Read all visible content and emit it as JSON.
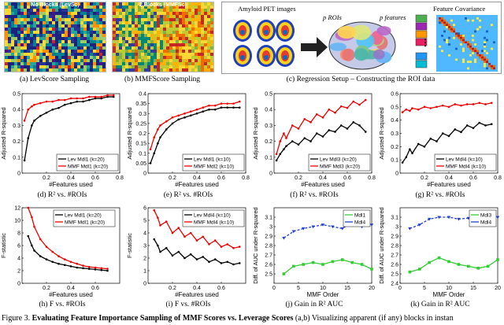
{
  "panel_a": {
    "title": "No Blocks (LevSc)",
    "caption": "(a) LevScore Sampling"
  },
  "panel_b": {
    "title": "2 Blocks (MMFSc)",
    "caption": "(b) MMFScore Sampling"
  },
  "panel_c": {
    "label_pet": "Amyloid PET images",
    "label_rois": "p ROIs",
    "label_features": "p features",
    "label_cov": "Feature Covariance",
    "dots": "⋮",
    "caption": "(c) Regression Setup – Constructing the ROI data"
  },
  "captions": {
    "d": "(d) R² vs. #ROIs",
    "e": "(e) R² vs. #ROIs",
    "f": "(f) R² vs. #ROIs",
    "g": "(g) R² vs. #ROIs",
    "h": "(h) F vs. #ROIs",
    "i": "(i) F vs. #ROIs",
    "j": "(j) Gain in R² AUC",
    "k": "(k) Gain in R² AUC"
  },
  "figure_caption": {
    "label": "Figure 3.",
    "bold": "Evaluating Feature Importance Sampling of MMF Scores vs. Leverage Scores",
    "rest": " (a,b) Visualizing apparent (if any) blocks in instan"
  },
  "chart_data": [
    {
      "id": "d",
      "type": "line",
      "xlabel": "#Features used",
      "ylabel": "Adjusted R-squared",
      "xlim": [
        0,
        0.8
      ],
      "ylim": [
        0,
        0.5
      ],
      "xticks": [
        "0.2",
        "0.4",
        "0.6",
        "0.8"
      ],
      "yticks": [
        "0",
        "0.1",
        "0.2",
        "0.3",
        "0.4",
        "0.5"
      ],
      "series": [
        {
          "name": "Lev Mdl1 (k=20)",
          "color": "#000000",
          "marker": "dot",
          "x": [
            0.02,
            0.05,
            0.08,
            0.1,
            0.15,
            0.2,
            0.25,
            0.3,
            0.35,
            0.4,
            0.45,
            0.5,
            0.55,
            0.6,
            0.65,
            0.7,
            0.75
          ],
          "y": [
            0.08,
            0.22,
            0.3,
            0.33,
            0.36,
            0.38,
            0.4,
            0.41,
            0.43,
            0.44,
            0.45,
            0.45,
            0.46,
            0.47,
            0.47,
            0.48,
            0.48
          ]
        },
        {
          "name": "MMF Mdl1 (k=20)",
          "color": "#ee0000",
          "marker": "dot",
          "x": [
            0.02,
            0.05,
            0.08,
            0.1,
            0.15,
            0.2,
            0.25,
            0.3,
            0.35,
            0.4,
            0.45,
            0.5,
            0.55,
            0.6,
            0.65,
            0.7,
            0.75
          ],
          "y": [
            0.33,
            0.4,
            0.42,
            0.43,
            0.44,
            0.45,
            0.45,
            0.46,
            0.46,
            0.47,
            0.47,
            0.47,
            0.48,
            0.48,
            0.48,
            0.49,
            0.49
          ]
        }
      ]
    },
    {
      "id": "e",
      "type": "line",
      "xlabel": "#Features used",
      "ylabel": "Adjusted R-squared",
      "xlim": [
        0,
        0.8
      ],
      "ylim": [
        0,
        0.4
      ],
      "xticks": [
        "0.2",
        "0.4",
        "0.6",
        "0.8"
      ],
      "yticks": [
        "0",
        "0.05",
        "0.1",
        "0.15",
        "0.2",
        "0.25",
        "0.3",
        "0.35",
        "0.4"
      ],
      "series": [
        {
          "name": "Lev Mdl1 (k=10)",
          "color": "#000000",
          "marker": "dot",
          "x": [
            0.02,
            0.05,
            0.08,
            0.1,
            0.15,
            0.2,
            0.25,
            0.3,
            0.35,
            0.4,
            0.45,
            0.5,
            0.55,
            0.6,
            0.65,
            0.7,
            0.75
          ],
          "y": [
            0.05,
            0.1,
            0.15,
            0.18,
            0.22,
            0.25,
            0.27,
            0.28,
            0.29,
            0.3,
            0.31,
            0.32,
            0.32,
            0.33,
            0.33,
            0.33,
            0.33
          ]
        },
        {
          "name": "MMF Mdl2 (k=10)",
          "color": "#ee0000",
          "marker": "dot",
          "x": [
            0.02,
            0.05,
            0.08,
            0.1,
            0.15,
            0.2,
            0.25,
            0.3,
            0.35,
            0.4,
            0.45,
            0.5,
            0.55,
            0.6,
            0.65,
            0.7,
            0.75
          ],
          "y": [
            0.12,
            0.18,
            0.22,
            0.24,
            0.26,
            0.28,
            0.29,
            0.3,
            0.31,
            0.32,
            0.33,
            0.34,
            0.34,
            0.35,
            0.35,
            0.35,
            0.36
          ]
        }
      ]
    },
    {
      "id": "f",
      "type": "line",
      "xlabel": "#Features used",
      "ylabel": "Adjusted R-squared",
      "xlim": [
        0,
        0.8
      ],
      "ylim": [
        0,
        0.5
      ],
      "xticks": [
        "0.2",
        "0.4",
        "0.6",
        "0.8"
      ],
      "yticks": [
        "0",
        "0.1",
        "0.2",
        "0.3",
        "0.4",
        "0.5"
      ],
      "series": [
        {
          "name": "Lev Mdl3 (k=20)",
          "color": "#000000",
          "marker": "dot",
          "x": [
            0.02,
            0.05,
            0.08,
            0.1,
            0.15,
            0.2,
            0.25,
            0.3,
            0.35,
            0.4,
            0.45,
            0.5,
            0.55,
            0.6,
            0.65,
            0.7,
            0.75
          ],
          "y": [
            0.08,
            0.12,
            0.15,
            0.17,
            0.2,
            0.18,
            0.22,
            0.2,
            0.25,
            0.23,
            0.27,
            0.26,
            0.3,
            0.28,
            0.32,
            0.3,
            0.26
          ]
        },
        {
          "name": "MMF Mdl3 (k=20)",
          "color": "#ee0000",
          "marker": "dot",
          "x": [
            0.02,
            0.05,
            0.08,
            0.1,
            0.15,
            0.2,
            0.25,
            0.3,
            0.35,
            0.4,
            0.45,
            0.5,
            0.55,
            0.6,
            0.65,
            0.7,
            0.75
          ],
          "y": [
            0.12,
            0.2,
            0.25,
            0.22,
            0.3,
            0.28,
            0.34,
            0.32,
            0.37,
            0.35,
            0.4,
            0.38,
            0.42,
            0.41,
            0.45,
            0.43,
            0.46
          ]
        }
      ]
    },
    {
      "id": "g",
      "type": "line",
      "xlabel": "#Features used",
      "ylabel": "Adjusted R-squared",
      "xlim": [
        0,
        0.8
      ],
      "ylim": [
        0,
        0.6
      ],
      "xticks": [
        "0.2",
        "0.4",
        "0.6",
        "0.8"
      ],
      "yticks": [
        "0",
        "0.1",
        "0.2",
        "0.3",
        "0.4",
        "0.5",
        "0.6"
      ],
      "series": [
        {
          "name": "Lev Mdl4 (k=10)",
          "color": "#000000",
          "marker": "dot",
          "x": [
            0.02,
            0.05,
            0.08,
            0.1,
            0.15,
            0.2,
            0.25,
            0.3,
            0.35,
            0.4,
            0.45,
            0.5,
            0.55,
            0.6,
            0.65,
            0.7,
            0.75
          ],
          "y": [
            0.08,
            0.12,
            0.18,
            0.15,
            0.22,
            0.2,
            0.26,
            0.24,
            0.3,
            0.28,
            0.33,
            0.31,
            0.36,
            0.34,
            0.38,
            0.36,
            0.37
          ]
        },
        {
          "name": "MMF Mdl4 (k=10)",
          "color": "#ee0000",
          "marker": "dot",
          "x": [
            0.02,
            0.05,
            0.08,
            0.1,
            0.15,
            0.2,
            0.25,
            0.3,
            0.35,
            0.4,
            0.45,
            0.5,
            0.55,
            0.6,
            0.65,
            0.7,
            0.75
          ],
          "y": [
            0.46,
            0.48,
            0.47,
            0.49,
            0.48,
            0.5,
            0.49,
            0.5,
            0.51,
            0.5,
            0.52,
            0.51,
            0.52,
            0.52,
            0.53,
            0.52,
            0.53
          ]
        }
      ]
    },
    {
      "id": "h",
      "type": "line",
      "xlabel": "#Features used",
      "ylabel": "F-statistic",
      "xlim": [
        0,
        0.8
      ],
      "ylim": [
        0,
        12
      ],
      "xticks": [
        "0.2",
        "0.4",
        "0.6"
      ],
      "yticks": [
        "0",
        "2",
        "4",
        "6",
        "8",
        "10",
        "12"
      ],
      "series": [
        {
          "name": "Lev Mdl1 (k=20)",
          "color": "#000000",
          "marker": "dot",
          "x": [
            0.05,
            0.08,
            0.1,
            0.15,
            0.2,
            0.25,
            0.3,
            0.35,
            0.4,
            0.45,
            0.5,
            0.55,
            0.6,
            0.65,
            0.7
          ],
          "y": [
            7.5,
            6.0,
            5.2,
            4.3,
            3.8,
            3.4,
            3.1,
            2.9,
            2.7,
            2.5,
            2.4,
            2.3,
            2.2,
            2.1,
            2.0
          ]
        },
        {
          "name": "MMF Mdl1 (k=20)",
          "color": "#ee0000",
          "marker": "dot",
          "x": [
            0.05,
            0.08,
            0.1,
            0.15,
            0.2,
            0.25,
            0.3,
            0.35,
            0.4,
            0.45,
            0.5,
            0.55,
            0.6,
            0.65,
            0.7
          ],
          "y": [
            12,
            10.5,
            9.0,
            7.0,
            5.8,
            5.0,
            4.3,
            3.8,
            3.4,
            3.1,
            2.8,
            2.6,
            2.5,
            2.4,
            2.3
          ]
        }
      ]
    },
    {
      "id": "i",
      "type": "line",
      "xlabel": "#Features used",
      "ylabel": "F-statistic",
      "xlim": [
        0,
        0.8
      ],
      "ylim": [
        0,
        6
      ],
      "xticks": [
        "0.2",
        "0.4",
        "0.6"
      ],
      "yticks": [
        "0",
        "1",
        "2",
        "3",
        "4",
        "5",
        "6"
      ],
      "series": [
        {
          "name": "Lev Mdl4 (k=10)",
          "color": "#000000",
          "marker": "dot",
          "x": [
            0.05,
            0.08,
            0.1,
            0.15,
            0.2,
            0.25,
            0.3,
            0.35,
            0.4,
            0.45,
            0.5,
            0.55,
            0.6,
            0.65,
            0.7,
            0.75
          ],
          "y": [
            3.5,
            3.0,
            2.5,
            2.8,
            2.2,
            2.5,
            2.0,
            2.3,
            1.9,
            2.1,
            1.7,
            1.9,
            1.6,
            1.7,
            1.5,
            1.6
          ]
        },
        {
          "name": "MMF Mdl4 (k=10)",
          "color": "#ee0000",
          "marker": "dot",
          "x": [
            0.05,
            0.08,
            0.1,
            0.15,
            0.2,
            0.25,
            0.3,
            0.35,
            0.4,
            0.45,
            0.5,
            0.55,
            0.6,
            0.65,
            0.7,
            0.75
          ],
          "y": [
            5.8,
            5.2,
            4.6,
            4.9,
            4.0,
            4.4,
            3.7,
            4.0,
            3.4,
            3.7,
            3.1,
            3.4,
            2.9,
            3.1,
            2.8,
            2.9
          ]
        }
      ]
    },
    {
      "id": "j",
      "type": "line",
      "xlabel": "MMF Order",
      "ylabel": "Diff. of AUC under R-squared",
      "xlim": [
        0,
        20
      ],
      "ylim": [
        2.4,
        3.2
      ],
      "xticks": [
        "0",
        "5",
        "10",
        "15",
        "20"
      ],
      "yticks": [
        "2.5",
        "2.6",
        "2.7",
        "2.8",
        "2.9",
        "3",
        "3.1"
      ],
      "series": [
        {
          "name": "Mdl1",
          "color": "#33cc33",
          "marker": "square",
          "x": [
            2,
            4,
            6,
            8,
            10,
            12,
            14,
            16,
            18,
            20
          ],
          "y": [
            2.5,
            2.58,
            2.6,
            2.62,
            2.6,
            2.63,
            2.65,
            2.62,
            2.6,
            2.55
          ]
        },
        {
          "name": "Mdl4",
          "color": "#1f3fd0",
          "marker": "triangle",
          "x": [
            2,
            4,
            6,
            8,
            10,
            12,
            14,
            16,
            18,
            20
          ],
          "y": [
            2.88,
            2.95,
            2.98,
            3.0,
            3.02,
            3.0,
            2.98,
            3.05,
            3.0,
            3.02
          ]
        }
      ]
    },
    {
      "id": "k",
      "type": "line",
      "xlabel": "MMF Order",
      "ylabel": "Diff. of AUC under R-squared",
      "xlim": [
        0,
        20
      ],
      "ylim": [
        2.4,
        3.2
      ],
      "xticks": [
        "0",
        "5",
        "10",
        "15",
        "20"
      ],
      "yticks": [
        "2.4",
        "2.5",
        "2.6",
        "2.7",
        "2.8",
        "2.9",
        "3",
        "3.1"
      ],
      "series": [
        {
          "name": "Mdl3",
          "color": "#33cc33",
          "marker": "square",
          "x": [
            2,
            4,
            6,
            8,
            10,
            12,
            14,
            16,
            18,
            20
          ],
          "y": [
            2.52,
            2.55,
            2.62,
            2.67,
            2.63,
            2.6,
            2.58,
            2.56,
            2.58,
            2.65
          ]
        },
        {
          "name": "Mdl4",
          "color": "#1f3fd0",
          "marker": "triangle",
          "x": [
            2,
            4,
            6,
            8,
            10,
            12,
            14,
            16,
            18,
            20
          ],
          "y": [
            2.98,
            3.02,
            3.08,
            3.1,
            3.1,
            3.08,
            3.09,
            3.1,
            3.09,
            3.1
          ]
        }
      ]
    }
  ]
}
